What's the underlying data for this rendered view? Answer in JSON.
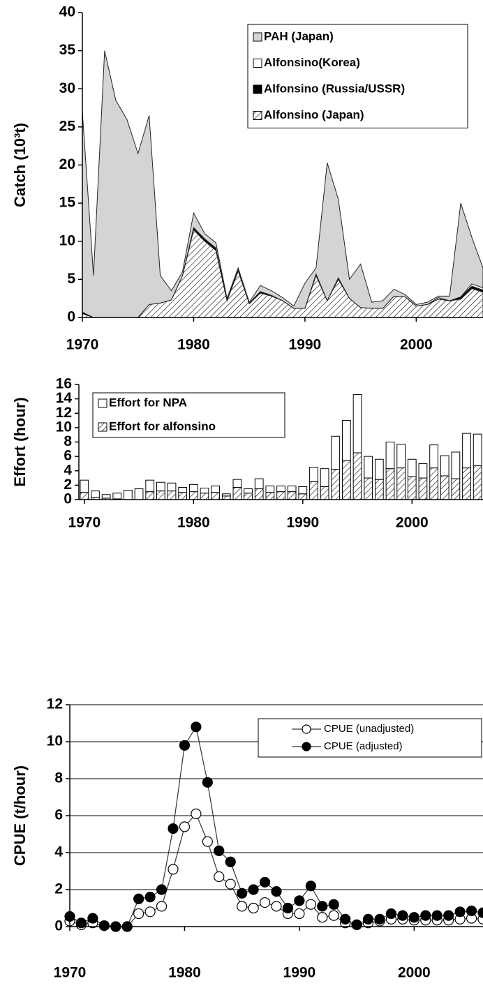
{
  "chart_data": [
    {
      "type": "area",
      "ylabel": "Catch (10³t)",
      "x": [
        1970,
        1971,
        1972,
        1973,
        1974,
        1975,
        1976,
        1977,
        1978,
        1979,
        1980,
        1981,
        1982,
        1983,
        1984,
        1985,
        1986,
        1987,
        1988,
        1989,
        1990,
        1991,
        1992,
        1993,
        1994,
        1995,
        1996,
        1997,
        1998,
        1999,
        2000,
        2001,
        2002,
        2003,
        2004,
        2005,
        2006
      ],
      "series": [
        {
          "name": "PAH (Japan)",
          "color": "#d4d4d4",
          "values": [
            26.3,
            5.5,
            35,
            28.5,
            26,
            21.5,
            24.8,
            3.6,
            1.2,
            0.5,
            1.9,
            0.7,
            0.7,
            0.2,
            0.2,
            0.1,
            0.8,
            0.6,
            0.4,
            0.3,
            3.3,
            0.8,
            18.1,
            10.3,
            2.5,
            5.7,
            0.8,
            1.0,
            0.9,
            0.3,
            0.2,
            0.3,
            0.2,
            0.6,
            12.3,
            6.1,
            2.6
          ]
        },
        {
          "name": "Alfonsino(Korea)",
          "color": "#ffffff",
          "values": [
            0,
            0,
            0,
            0,
            0,
            0,
            0,
            0,
            0,
            0,
            0,
            0,
            0,
            0,
            0,
            0,
            0,
            0,
            0,
            0,
            0,
            0,
            0,
            0,
            0,
            0,
            0,
            0,
            0,
            0,
            0,
            0,
            0.2,
            0,
            0,
            0.3,
            0.3
          ]
        },
        {
          "name": "Alfonsino (Russia/USSR)",
          "color": "#000000",
          "values": [
            0.2,
            0,
            0,
            0,
            0,
            0,
            0,
            0,
            0,
            0,
            0.3,
            0.3,
            0.3,
            0.1,
            0.2,
            0.1,
            0.2,
            0.1,
            0,
            0,
            0,
            0.2,
            0,
            0.2,
            0,
            0,
            0,
            0,
            0,
            0,
            0,
            0,
            0,
            0,
            0.3,
            0.3,
            0.3
          ]
        },
        {
          "name": "Alfonsino (Japan)",
          "color": "#000000",
          "hatch": true,
          "values": [
            0.5,
            0,
            0,
            0,
            0,
            0,
            1.7,
            1.9,
            2.3,
            5.5,
            11.5,
            10,
            8.8,
            2.2,
            6.1,
            1.8,
            3.2,
            2.8,
            2.2,
            1.2,
            1.2,
            5.5,
            2.2,
            5,
            2.5,
            1.3,
            1.2,
            1.2,
            2.8,
            2.7,
            1.5,
            1.7,
            2.4,
            2.2,
            2.4,
            3.8,
            3.3
          ]
        }
      ],
      "xlim": [
        1970,
        2006
      ],
      "xticks": [
        1970,
        1980,
        1990,
        2000
      ],
      "ylim": [
        0,
        40
      ],
      "yticks": [
        0,
        5,
        10,
        15,
        20,
        25,
        30,
        35,
        40
      ],
      "grid": false,
      "legend": "upper right"
    },
    {
      "type": "bar",
      "ylabel": "Effort (hour)",
      "x": [
        1970,
        1971,
        1972,
        1973,
        1974,
        1975,
        1976,
        1977,
        1978,
        1979,
        1980,
        1981,
        1982,
        1983,
        1984,
        1985,
        1986,
        1987,
        1988,
        1989,
        1990,
        1991,
        1992,
        1993,
        1994,
        1995,
        1996,
        1997,
        1998,
        1999,
        2000,
        2001,
        2002,
        2003,
        2004,
        2005,
        2006
      ],
      "series": [
        {
          "name": "Effort for NPA",
          "color": "#ffffff",
          "values": [
            1.7,
            0.9,
            0.5,
            0.8,
            1.3,
            1.5,
            1.6,
            1.2,
            1.1,
            0.7,
            1.0,
            0.7,
            0.9,
            0.3,
            1.1,
            0.6,
            1.4,
            0.9,
            0.8,
            0.8,
            1.0,
            2.0,
            2.5,
            4.6,
            5.6,
            8.1,
            3.0,
            2.8,
            3.7,
            3.3,
            2.4,
            2.0,
            3.2,
            2.8,
            3.7,
            4.8,
            4.4
          ]
        },
        {
          "name": "Effort for alfonsino",
          "color": "#000000",
          "hatch": true,
          "values": [
            1.0,
            0.3,
            0.2,
            0.1,
            0,
            0,
            1.1,
            1.2,
            1.2,
            1.0,
            1.1,
            0.9,
            1.0,
            0.5,
            1.7,
            0.9,
            1.5,
            1.0,
            1.1,
            1.1,
            0.8,
            2.5,
            1.8,
            4.2,
            5.4,
            6.5,
            3.0,
            2.8,
            4.3,
            4.4,
            3.2,
            3.0,
            4.4,
            3.3,
            2.9,
            4.4,
            4.7
          ]
        }
      ],
      "xlim": [
        1969.5,
        2006.5
      ],
      "xticks": [
        1970,
        1980,
        1990,
        2000
      ],
      "ylim": [
        0,
        16
      ],
      "yticks": [
        0,
        2,
        4,
        6,
        8,
        10,
        12,
        14,
        16
      ],
      "grid": false,
      "legend": "upper left"
    },
    {
      "type": "line",
      "ylabel": "CPUE (t/hour)",
      "x": [
        1970,
        1971,
        1972,
        1973,
        1974,
        1975,
        1976,
        1977,
        1978,
        1979,
        1980,
        1981,
        1982,
        1983,
        1984,
        1985,
        1986,
        1987,
        1988,
        1989,
        1990,
        1991,
        1992,
        1993,
        1994,
        1995,
        1996,
        1997,
        1998,
        1999,
        2000,
        2001,
        2002,
        2003,
        2004,
        2005,
        2006
      ],
      "series": [
        {
          "name": "CPUE (unadjusted)",
          "color": "#ffffff",
          "values": [
            0.3,
            0.1,
            0.2,
            0.05,
            0,
            0,
            0.7,
            0.8,
            1.1,
            3.1,
            5.4,
            6.1,
            4.6,
            2.7,
            2.3,
            1.1,
            1.0,
            1.3,
            1.1,
            0.7,
            0.7,
            1.2,
            0.5,
            0.6,
            0.2,
            0.1,
            0.2,
            0.3,
            0.4,
            0.4,
            0.35,
            0.35,
            0.35,
            0.35,
            0.4,
            0.45,
            0.4
          ]
        },
        {
          "name": "CPUE (adjusted)",
          "color": "#000000",
          "values": [
            0.55,
            0.2,
            0.45,
            0.05,
            0,
            0,
            1.5,
            1.6,
            2.0,
            5.3,
            9.8,
            10.8,
            7.8,
            4.1,
            3.5,
            1.8,
            2.0,
            2.4,
            1.9,
            1.0,
            1.4,
            2.2,
            1.1,
            1.2,
            0.4,
            0.1,
            0.4,
            0.4,
            0.7,
            0.6,
            0.5,
            0.6,
            0.6,
            0.6,
            0.8,
            0.85,
            0.75
          ]
        }
      ],
      "xlim": [
        1970,
        2006
      ],
      "xticks": [
        1970,
        1980,
        1990,
        2000
      ],
      "ylim": [
        0,
        12
      ],
      "yticks": [
        0,
        2,
        4,
        6,
        8,
        10,
        12
      ],
      "grid": true,
      "legend": "upper right"
    }
  ]
}
